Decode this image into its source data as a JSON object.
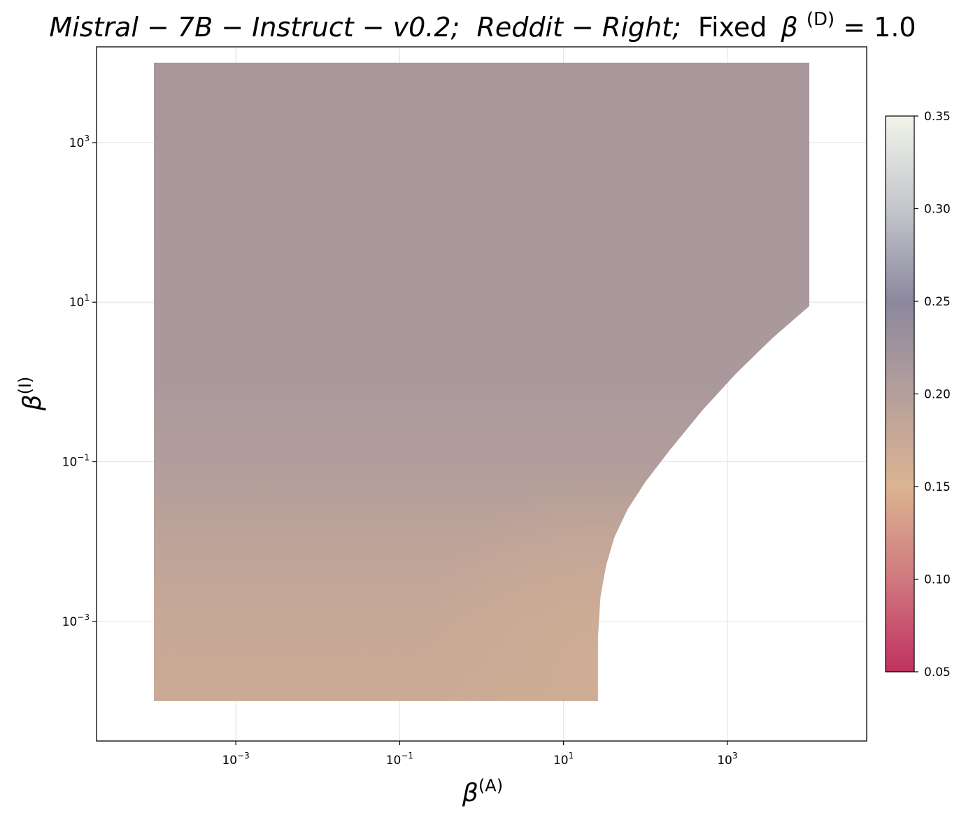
{
  "chart_data": {
    "type": "heatmap",
    "title_parts": {
      "model": "Mistral − 7B − Instruct − v0.2;",
      "dataset": "Reddit − Right;",
      "fixed": "Fixed",
      "beta": "β",
      "sup": "(D)",
      "value": " = 1.0"
    },
    "xlabel": {
      "symbol": "β",
      "sup": "(A)"
    },
    "ylabel": {
      "symbol": "β",
      "sup": "(I)"
    },
    "x_scale": "log",
    "y_scale": "log",
    "xlim_log10": [
      -4.7,
      4.7
    ],
    "ylim_log10": [
      -4.5,
      4.2
    ],
    "x_ticks": [
      {
        "log10": -3,
        "base": "10",
        "exp": "−3"
      },
      {
        "log10": -1,
        "base": "10",
        "exp": "−1"
      },
      {
        "log10": 1,
        "base": "10",
        "exp": "1"
      },
      {
        "log10": 3,
        "base": "10",
        "exp": "3"
      }
    ],
    "y_ticks": [
      {
        "log10": 3,
        "base": "10",
        "exp": "3"
      },
      {
        "log10": 1,
        "base": "10",
        "exp": "1"
      },
      {
        "log10": -1,
        "base": "10",
        "exp": "−1"
      },
      {
        "log10": -3,
        "base": "10",
        "exp": "−3"
      }
    ],
    "grid": true,
    "data_domain_log10": {
      "x": [
        -4,
        4
      ],
      "y": [
        -4,
        4
      ]
    },
    "feasible_boundary_log10": [
      {
        "x": 1.42,
        "y": -4.0
      },
      {
        "x": 1.42,
        "y": -3.2
      },
      {
        "x": 1.45,
        "y": -2.7
      },
      {
        "x": 1.52,
        "y": -2.3
      },
      {
        "x": 1.62,
        "y": -1.95
      },
      {
        "x": 1.78,
        "y": -1.6
      },
      {
        "x": 2.0,
        "y": -1.25
      },
      {
        "x": 2.3,
        "y": -0.85
      },
      {
        "x": 2.7,
        "y": -0.35
      },
      {
        "x": 3.1,
        "y": 0.1
      },
      {
        "x": 3.55,
        "y": 0.55
      },
      {
        "x": 4.0,
        "y": 0.95
      }
    ],
    "value_field": {
      "description_values": "approximate color value by beta_I (log10)",
      "rows": [
        {
          "y": 4.0,
          "value": 0.215
        },
        {
          "y": 0.0,
          "value": 0.213
        },
        {
          "y": -1.0,
          "value": 0.205
        },
        {
          "y": -2.0,
          "value": 0.19
        },
        {
          "y": -3.0,
          "value": 0.178
        },
        {
          "y": -4.0,
          "value": 0.173
        }
      ],
      "right_edge_low": {
        "x": 1.42,
        "y": -3.5,
        "value": 0.165
      }
    },
    "colorbar": {
      "min": 0.05,
      "max": 0.35,
      "ticks": [
        "0.05",
        "0.10",
        "0.15",
        "0.20",
        "0.25",
        "0.30",
        "0.35"
      ],
      "tick_values": [
        0.05,
        0.1,
        0.15,
        0.2,
        0.25,
        0.3,
        0.35
      ],
      "colormap_stops": [
        {
          "v": 0.05,
          "color": "#c0325f"
        },
        {
          "v": 0.1,
          "color": "#d0797f"
        },
        {
          "v": 0.15,
          "color": "#dcb491"
        },
        {
          "v": 0.2,
          "color": "#b59f9b"
        },
        {
          "v": 0.25,
          "color": "#8b889e"
        },
        {
          "v": 0.3,
          "color": "#c4c6cc"
        },
        {
          "v": 0.35,
          "color": "#f1f4ea"
        }
      ]
    }
  }
}
